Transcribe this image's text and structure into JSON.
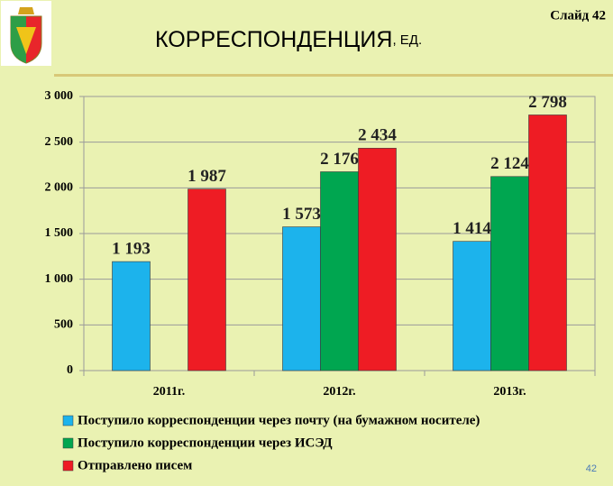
{
  "slide": {
    "title": "КОРРЕСПОНДЕНЦИЯ",
    "unit": ", ЕД.",
    "slide_label": "Слайд 42",
    "page_number": "42"
  },
  "chart_data": {
    "type": "bar",
    "categories": [
      "2011г.",
      "2012г.",
      "2013г."
    ],
    "series": [
      {
        "name": "Поступило корреспонденции через почту (на бумажном носителе)",
        "color": "#1cb3ec",
        "values": [
          1193,
          1573,
          1414
        ],
        "value_labels": [
          "1 193",
          "1 573",
          "1 414"
        ]
      },
      {
        "name": "Поступило корреспонденции через ИСЭД",
        "color": "#00a650",
        "values": [
          null,
          2176,
          2124
        ],
        "value_labels": [
          null,
          "2 176",
          "2 124"
        ]
      },
      {
        "name": "Отправлено писем",
        "color": "#ee1c24",
        "values": [
          1987,
          2434,
          2798
        ],
        "value_labels": [
          "1 987",
          "2 434",
          "2 798"
        ]
      }
    ],
    "ylim": [
      0,
      3000
    ],
    "yticks": [
      0,
      500,
      {
        "value": 1000,
        "label": "1 000"
      },
      {
        "value": 1500,
        "label": "1 500"
      },
      {
        "value": 2000,
        "label": "2 000"
      },
      {
        "value": 2500,
        "label": "2 500"
      },
      {
        "value": 3000,
        "label": "3 000"
      }
    ],
    "grid": true
  }
}
